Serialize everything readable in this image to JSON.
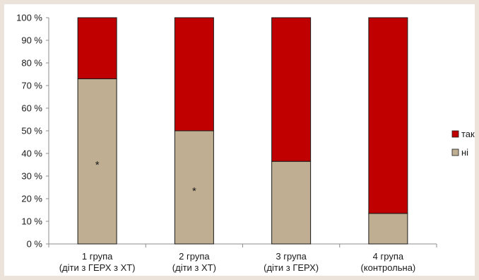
{
  "chart_data": {
    "type": "bar",
    "stacked": true,
    "categories": [
      [
        "1 група",
        "(діти з ГЕРХ з ХТ)"
      ],
      [
        "2 група",
        "(діти з ХТ)"
      ],
      [
        "3 група",
        "(діти з ГЕРХ)"
      ],
      [
        "4 група",
        "(контрольна)"
      ]
    ],
    "series": [
      {
        "name": "ні",
        "color": "#bfae92",
        "values": [
          73,
          50,
          36.5,
          13.5
        ]
      },
      {
        "name": "так",
        "color": "#c00000",
        "values": [
          27,
          50,
          63.5,
          86.5
        ]
      }
    ],
    "legend_order": [
      "так",
      "ні"
    ],
    "ylim": [
      0,
      100
    ],
    "yticks": [
      "0 %",
      "10 %",
      "20 %",
      "30 %",
      "40 %",
      "50 %",
      "60 %",
      "70 %",
      "80 %",
      "90 %",
      "100 %"
    ],
    "annotations": [
      {
        "category_index": 0,
        "series": "ні",
        "text": "*"
      },
      {
        "category_index": 1,
        "series": "ні",
        "text": "*"
      }
    ],
    "legend_position": "right",
    "grid": false
  }
}
